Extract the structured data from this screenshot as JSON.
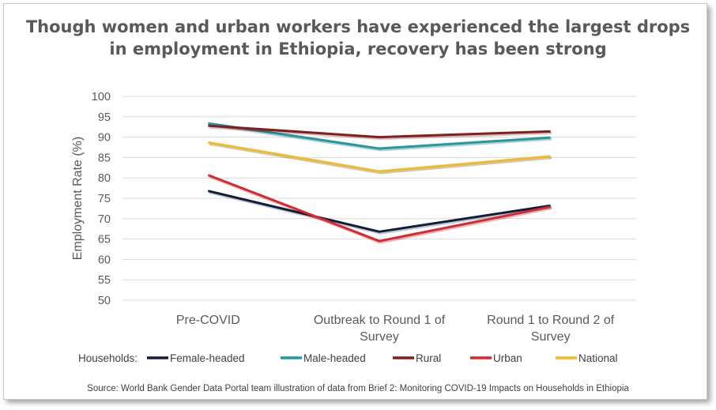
{
  "chart_data": {
    "type": "line",
    "title": "Though women and urban workers have experienced the largest drops in employment in Ethiopia, recovery has been strong",
    "xlabel": "",
    "ylabel": "Employment Rate (%)",
    "categories": [
      "Pre-COVID",
      "Outbreak to Round 1 of Survey",
      "Round 1 to Round 2 of Survey"
    ],
    "ylim": [
      50,
      100
    ],
    "yticks": [
      "50",
      "55",
      "60",
      "65",
      "70",
      "75",
      "80",
      "85",
      "90",
      "95",
      "100"
    ],
    "grid": true,
    "legend_position": "bottom",
    "legend_prefix": "Households:",
    "series": [
      {
        "name": "Female-headed",
        "color": "#0d1f3c",
        "values": [
          76.8,
          66.8,
          73.2
        ]
      },
      {
        "name": "Male-headed",
        "color": "#1a9ca3",
        "values": [
          93.4,
          87.2,
          89.9
        ]
      },
      {
        "name": "Rural",
        "color": "#8b1a1a",
        "values": [
          92.8,
          90.0,
          91.4
        ]
      },
      {
        "name": "Urban",
        "color": "#e3242b",
        "values": [
          80.7,
          64.5,
          72.9
        ]
      },
      {
        "name": "National",
        "color": "#f5b921",
        "values": [
          88.7,
          81.6,
          85.3
        ]
      }
    ],
    "source": "Source:  World  Bank  Gender  Data  Portal  team  illustration  of  data  from  Brief  2:  Monitoring  COVID-19  Impacts  on  Households  in  Ethiopia"
  }
}
